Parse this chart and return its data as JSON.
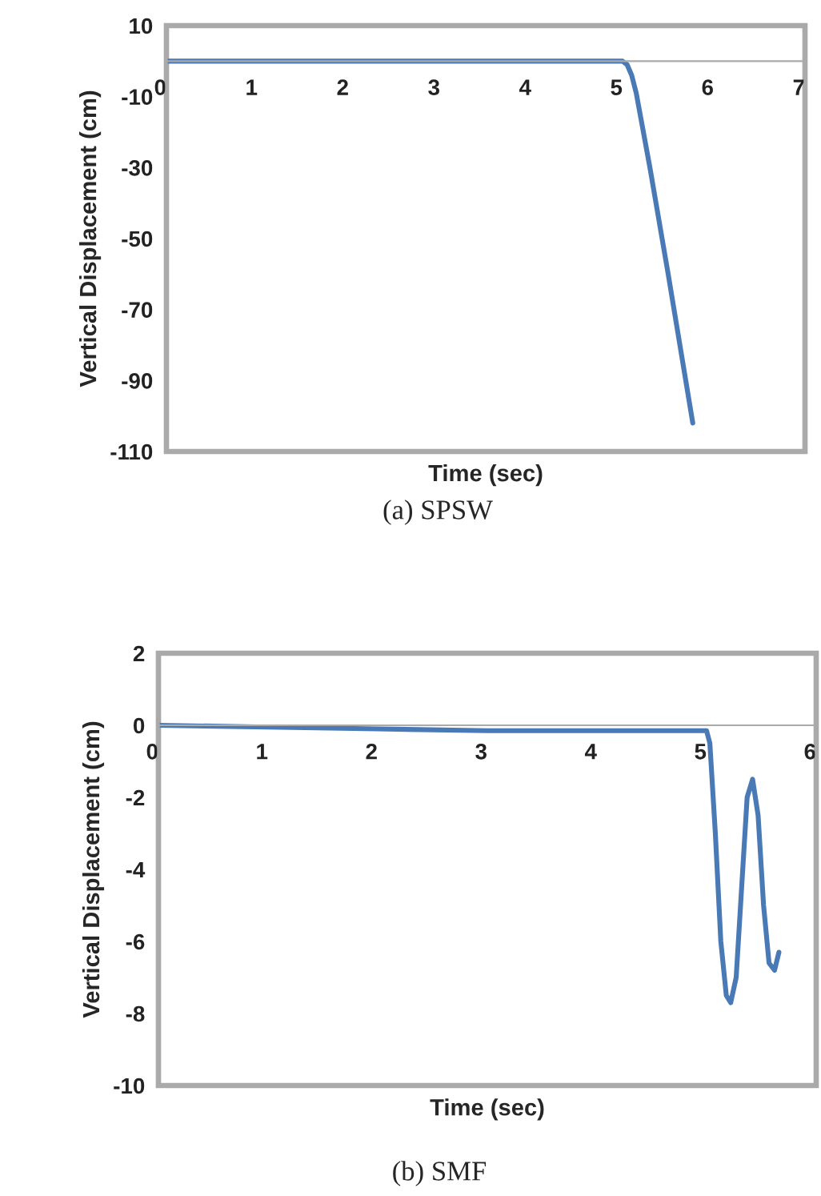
{
  "chart_data": [
    {
      "type": "line",
      "xlabel": "Time (sec)",
      "ylabel": "Vertical Displacement (cm)",
      "annotations": [
        "(a) SPSW"
      ],
      "xlim": [
        0,
        7
      ],
      "xticks": [
        0,
        1,
        2,
        3,
        4,
        5,
        6,
        7
      ],
      "ylim": [
        -110,
        10
      ],
      "yticks": [
        10,
        -10,
        -30,
        -50,
        -70,
        -90,
        -110
      ],
      "grid": false,
      "legend": false,
      "marker": "none",
      "line_style": "solid",
      "series": [
        {
          "color": "#4a7ab5",
          "x": [
            0,
            1,
            2,
            3,
            4,
            5,
            5.05,
            5.1,
            5.15,
            5.2,
            5.3,
            5.5,
            5.77
          ],
          "values": [
            0,
            0,
            0,
            0,
            0,
            0,
            -1,
            -4,
            -9,
            -16,
            -30,
            -60,
            -102
          ]
        }
      ]
    },
    {
      "type": "line",
      "xlabel": "Time (sec)",
      "ylabel": "Vertical Displacement (cm)",
      "annotations": [
        "(b) SMF"
      ],
      "xlim": [
        0,
        6
      ],
      "xticks": [
        0,
        1,
        2,
        3,
        4,
        5,
        6
      ],
      "ylim": [
        -10,
        2
      ],
      "yticks": [
        2,
        0,
        -2,
        -4,
        -6,
        -8,
        -10
      ],
      "grid": false,
      "legend": false,
      "marker": "none",
      "line_style": "solid",
      "series": [
        {
          "color": "#4a7ab5",
          "x": [
            0,
            1,
            2,
            3,
            4,
            5,
            5.03,
            5.08,
            5.13,
            5.18,
            5.22,
            5.27,
            5.32,
            5.37,
            5.42,
            5.47,
            5.52,
            5.57,
            5.62,
            5.66
          ],
          "values": [
            0,
            -0.05,
            -0.1,
            -0.15,
            -0.15,
            -0.15,
            -0.5,
            -3,
            -6,
            -7.5,
            -7.7,
            -7,
            -4.5,
            -2,
            -1.5,
            -2.5,
            -5,
            -6.6,
            -6.8,
            -6.3
          ]
        }
      ]
    }
  ]
}
